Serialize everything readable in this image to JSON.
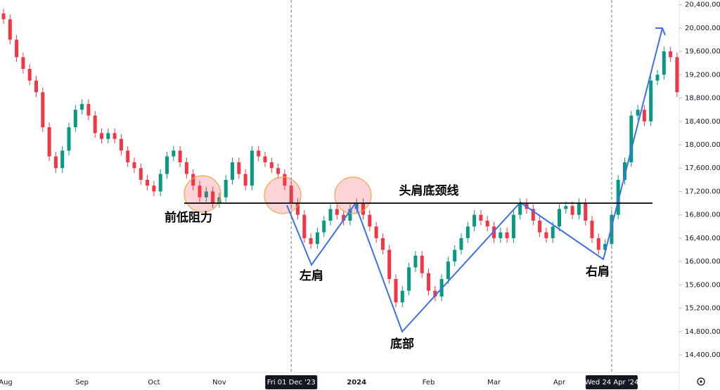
{
  "chart_data": {
    "type": "candlestick",
    "categories": [
      "Aug",
      null,
      null,
      null,
      null,
      null,
      null,
      null,
      null,
      null,
      null,
      null,
      "Sep",
      null,
      null,
      null,
      null,
      null,
      null,
      null,
      null,
      null,
      null,
      "Oct",
      null,
      null,
      null,
      null,
      null,
      null,
      null,
      null,
      null,
      "Nov",
      null,
      null,
      null,
      null,
      null,
      null,
      null,
      null,
      null,
      null,
      "Fri 01 Dec '23",
      null,
      null,
      null,
      null,
      null,
      null,
      null,
      null,
      null,
      "2024",
      null,
      null,
      null,
      null,
      null,
      null,
      null,
      null,
      null,
      null,
      "Feb",
      null,
      null,
      null,
      null,
      null,
      null,
      null,
      null,
      null,
      "Mar",
      null,
      null,
      null,
      null,
      null,
      null,
      null,
      null,
      null,
      "Apr",
      null,
      null,
      null,
      null,
      null,
      null,
      null,
      "Wed 24 Apr '24",
      null,
      null,
      null,
      null,
      null,
      null,
      null,
      null,
      null,
      null
    ],
    "markers": [
      44,
      93
    ],
    "open": [
      20250,
      20150,
      19800,
      19500,
      19300,
      19100,
      18900,
      18300,
      17800,
      17600,
      17900,
      18300,
      18600,
      18700,
      18500,
      18200,
      18100,
      18200,
      18100,
      17900,
      17700,
      17600,
      17400,
      17300,
      17200,
      17500,
      17800,
      17900,
      17700,
      17500,
      17300,
      17100,
      17200,
      17000,
      17100,
      17400,
      17700,
      17500,
      17300,
      17900,
      17800,
      17700,
      17600,
      17500,
      17300,
      17000,
      16800,
      16400,
      16300,
      16500,
      16700,
      16900,
      16800,
      16700,
      16900,
      17000,
      16800,
      16600,
      16400,
      16200,
      15700,
      15300,
      15500,
      15900,
      16100,
      15800,
      15500,
      15400,
      15700,
      16000,
      16200,
      16400,
      16600,
      16800,
      16700,
      16600,
      16400,
      16500,
      16400,
      16800,
      17000,
      16900,
      16700,
      16500,
      16400,
      16600,
      16900,
      16950,
      16800,
      17000,
      16700,
      16400,
      16200,
      16300,
      16800,
      17400,
      17700,
      18500,
      18600,
      18400,
      19100,
      19200,
      19600,
      19500
    ],
    "high": [
      20330,
      20230,
      19880,
      19580,
      19380,
      19180,
      18980,
      18380,
      17880,
      17980,
      18380,
      18680,
      18780,
      18780,
      18580,
      18280,
      18280,
      18280,
      18180,
      17980,
      17780,
      17680,
      17480,
      17380,
      17580,
      17880,
      17980,
      17980,
      17780,
      17580,
      17380,
      17280,
      17280,
      17180,
      17480,
      17780,
      17780,
      17580,
      17980,
      17980,
      17880,
      17780,
      17680,
      17580,
      17380,
      17080,
      16880,
      16480,
      16580,
      16780,
      16980,
      16980,
      16880,
      16980,
      17080,
      17080,
      16880,
      16680,
      16480,
      16280,
      15780,
      15580,
      15980,
      16180,
      16180,
      15880,
      15580,
      15780,
      16080,
      16280,
      16480,
      16680,
      16880,
      16880,
      16780,
      16680,
      16580,
      16580,
      16880,
      17080,
      17080,
      16980,
      16780,
      16580,
      16680,
      16980,
      17030,
      17030,
      17080,
      17080,
      16780,
      16480,
      16380,
      16880,
      17480,
      17780,
      18580,
      18680,
      18680,
      19180,
      19280,
      19680,
      19680,
      19580
    ],
    "low": [
      20070,
      19720,
      19420,
      19220,
      19020,
      18820,
      18220,
      17720,
      17520,
      17520,
      17820,
      18220,
      18520,
      18420,
      18120,
      18020,
      18020,
      18020,
      17820,
      17620,
      17520,
      17320,
      17220,
      17120,
      17120,
      17420,
      17720,
      17620,
      17420,
      17220,
      17020,
      17020,
      16920,
      16920,
      17020,
      17320,
      17420,
      17220,
      17220,
      17720,
      17620,
      17520,
      17420,
      17220,
      16920,
      16720,
      16320,
      16220,
      16220,
      16420,
      16620,
      16720,
      16620,
      16620,
      16820,
      16720,
      16520,
      16320,
      16120,
      15620,
      15220,
      15220,
      15420,
      15820,
      15720,
      15420,
      15320,
      15320,
      15620,
      15920,
      16120,
      16320,
      16520,
      16620,
      16520,
      16320,
      16320,
      16320,
      16320,
      16720,
      16820,
      16620,
      16420,
      16320,
      16320,
      16520,
      16820,
      16720,
      16720,
      16620,
      16320,
      16120,
      16120,
      16220,
      16720,
      17320,
      17620,
      18420,
      18320,
      18320,
      19020,
      19120,
      19420,
      18820
    ],
    "close": [
      20150,
      19800,
      19500,
      19300,
      19100,
      18900,
      18300,
      17800,
      17600,
      17900,
      18300,
      18600,
      18700,
      18500,
      18200,
      18100,
      18200,
      18100,
      17900,
      17700,
      17600,
      17400,
      17300,
      17200,
      17500,
      17800,
      17900,
      17700,
      17500,
      17300,
      17100,
      17200,
      17000,
      17100,
      17400,
      17700,
      17500,
      17300,
      17900,
      17800,
      17700,
      17600,
      17500,
      17300,
      17000,
      16800,
      16400,
      16300,
      16500,
      16700,
      16900,
      16800,
      16700,
      16900,
      17000,
      16800,
      16600,
      16400,
      16200,
      15700,
      15300,
      15500,
      15900,
      16100,
      15800,
      15500,
      15400,
      15700,
      16000,
      16200,
      16400,
      16600,
      16800,
      16700,
      16600,
      16400,
      16500,
      16400,
      16800,
      17000,
      16900,
      16700,
      16500,
      16400,
      16600,
      16900,
      16950,
      16800,
      17000,
      16700,
      16400,
      16200,
      16300,
      16800,
      17400,
      17700,
      18500,
      18600,
      18400,
      19100,
      19200,
      19600,
      19500,
      18900
    ],
    "up_color": "#089981",
    "down_color": "#f23645",
    "hline": 17000,
    "ylim": [
      14100,
      20480
    ],
    "yticks": [
      {
        "value": 14400,
        "label": "14,400.00"
      },
      {
        "value": 14800,
        "label": "14,800.00"
      },
      {
        "value": 15200,
        "label": "15,200.00"
      },
      {
        "value": 15600,
        "label": "15,600.00"
      },
      {
        "value": 16000,
        "label": "16,000.00"
      },
      {
        "value": 16400,
        "label": "16,400.00"
      },
      {
        "value": 16800,
        "label": "16,800.00"
      },
      {
        "value": 17200,
        "label": "17,200.00"
      },
      {
        "value": 17600,
        "label": "17,600.00"
      },
      {
        "value": 18000,
        "label": "18,000.00"
      },
      {
        "value": 18400,
        "label": "18,400.00"
      },
      {
        "value": 18800,
        "label": "18,800.00"
      },
      {
        "value": 19200,
        "label": "19,200.00"
      },
      {
        "value": 19600,
        "label": "19,600.00"
      },
      {
        "value": 20000,
        "label": "20,000.00"
      },
      {
        "value": 20400,
        "label": "20,400.00"
      }
    ],
    "annotations": [
      "前低阻力",
      "左肩",
      "头肩底颈线",
      "底部",
      "右肩"
    ]
  }
}
